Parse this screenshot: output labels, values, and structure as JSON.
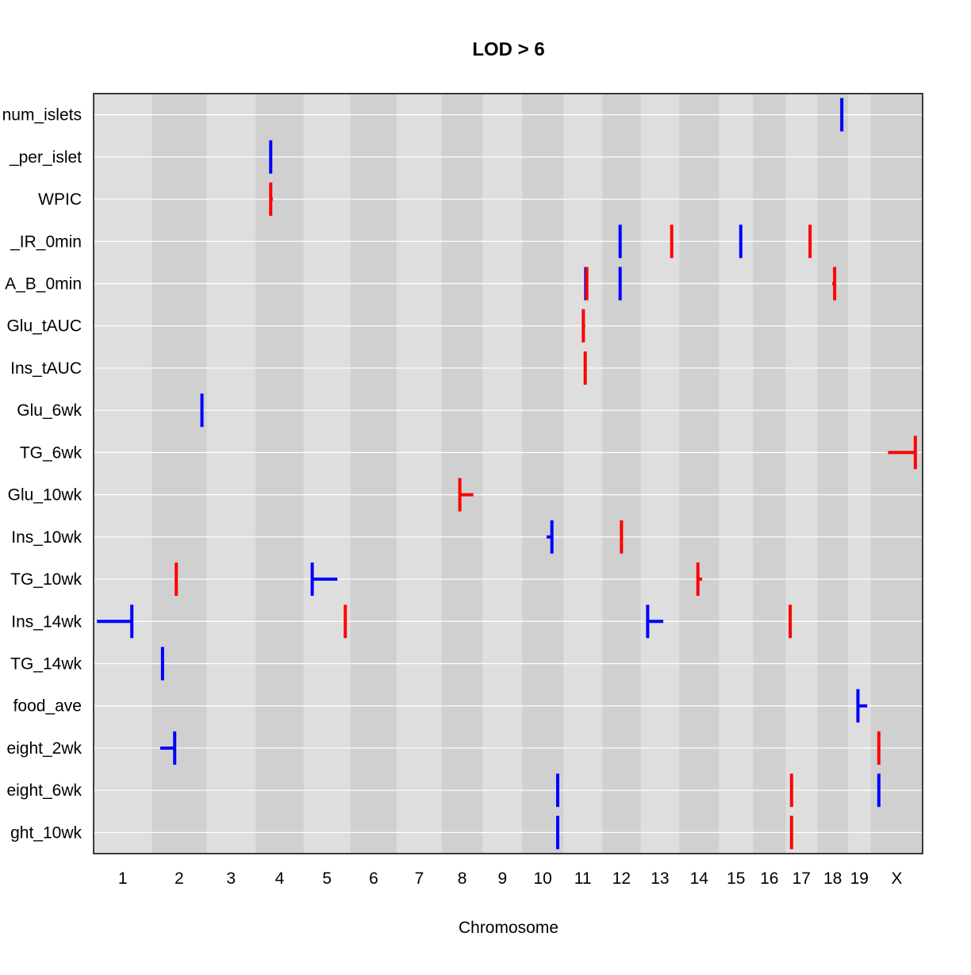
{
  "chart_data": {
    "type": "scatter",
    "title": "LOD > 6",
    "xlabel": "Chromosome",
    "ylabel": "",
    "chromosomes": [
      "1",
      "2",
      "3",
      "4",
      "5",
      "6",
      "7",
      "8",
      "9",
      "10",
      "11",
      "12",
      "13",
      "14",
      "15",
      "16",
      "17",
      "18",
      "19",
      "X"
    ],
    "chromosome_lengths_mb": [
      195,
      182,
      160,
      157,
      152,
      150,
      145,
      130,
      124,
      131,
      122,
      120,
      121,
      125,
      104,
      98,
      95,
      91,
      61,
      171
    ],
    "phenotypes": [
      "num_islets",
      "_per_islet",
      "WPIC",
      "_IR_0min",
      "A_B_0min",
      "Glu_tAUC",
      "Ins_tAUC",
      "Glu_6wk",
      "TG_6wk",
      "Glu_10wk",
      "Ins_10wk",
      "TG_10wk",
      "Ins_14wk",
      "TG_14wk",
      "food_ave",
      "eight_2wk",
      "eight_6wk",
      "ght_10wk"
    ],
    "colors": {
      "negative": "#0000ff",
      "positive": "#ff0000"
    },
    "background": {
      "panel_light": "#dedede",
      "panel_dark": "#d0d0d0",
      "grid": "#ffffff"
    },
    "qtl": [
      {
        "pheno": "num_islets",
        "chr": "18",
        "pos": 80,
        "lo": 80,
        "hi": 80,
        "color": "#0000ff"
      },
      {
        "pheno": "_per_islet",
        "chr": "4",
        "pos": 45,
        "lo": 45,
        "hi": 45,
        "color": "#0000ff"
      },
      {
        "pheno": "WPIC",
        "chr": "4",
        "pos": 45,
        "lo": 45,
        "hi": 53,
        "color": "#ff0000"
      },
      {
        "pheno": "_IR_0min",
        "chr": "12",
        "pos": 55,
        "lo": 55,
        "hi": 55,
        "color": "#0000ff"
      },
      {
        "pheno": "_IR_0min",
        "chr": "13",
        "pos": 105,
        "lo": 105,
        "hi": 105,
        "color": "#ff0000"
      },
      {
        "pheno": "_IR_0min",
        "chr": "15",
        "pos": 70,
        "lo": 70,
        "hi": 70,
        "color": "#0000ff"
      },
      {
        "pheno": "_IR_0min",
        "chr": "17",
        "pos": 80,
        "lo": 80,
        "hi": 86,
        "color": "#ff0000"
      },
      {
        "pheno": "A_B_0min",
        "chr": "11",
        "pos": 72,
        "lo": 72,
        "hi": 72,
        "color": "#0000ff"
      },
      {
        "pheno": "A_B_0min",
        "chr": "11",
        "pos": 76,
        "lo": 76,
        "hi": 76,
        "color": "#ff0000"
      },
      {
        "pheno": "A_B_0min",
        "chr": "12",
        "pos": 55,
        "lo": 55,
        "hi": 55,
        "color": "#0000ff"
      },
      {
        "pheno": "A_B_0min",
        "chr": "18",
        "pos": 53,
        "lo": 44,
        "hi": 53,
        "color": "#ff0000"
      },
      {
        "pheno": "Glu_tAUC",
        "chr": "11",
        "pos": 63,
        "lo": 63,
        "hi": 70,
        "color": "#ff0000"
      },
      {
        "pheno": "Ins_tAUC",
        "chr": "11",
        "pos": 70,
        "lo": 70,
        "hi": 70,
        "color": "#ff0000"
      },
      {
        "pheno": "Glu_6wk",
        "chr": "2",
        "pos": 177,
        "lo": 177,
        "hi": 177,
        "color": "#0000ff"
      },
      {
        "pheno": "TG_6wk",
        "chr": "X",
        "pos": 156,
        "lo": 53,
        "hi": 156,
        "color": "#ff0000"
      },
      {
        "pheno": "Glu_10wk",
        "chr": "8",
        "pos": 56,
        "lo": 56,
        "hi": 107,
        "color": "#ff0000"
      },
      {
        "pheno": "Ins_10wk",
        "chr": "10",
        "pos": 100,
        "lo": 80,
        "hi": 100,
        "color": "#0000ff"
      },
      {
        "pheno": "Ins_10wk",
        "chr": "12",
        "pos": 60,
        "lo": 60,
        "hi": 66,
        "color": "#ff0000"
      },
      {
        "pheno": "TG_10wk",
        "chr": "2",
        "pos": 80,
        "lo": 80,
        "hi": 80,
        "color": "#ff0000"
      },
      {
        "pheno": "TG_10wk",
        "chr": "5",
        "pos": 20,
        "lo": 20,
        "hi": 115,
        "color": "#0000ff"
      },
      {
        "pheno": "TG_10wk",
        "chr": "14",
        "pos": 58,
        "lo": 58,
        "hi": 74,
        "color": "#ff0000"
      },
      {
        "pheno": "Ins_14wk",
        "chr": "1",
        "pos": 132,
        "lo": 0,
        "hi": 132,
        "color": "#0000ff"
      },
      {
        "pheno": "Ins_14wk",
        "chr": "5",
        "pos": 145,
        "lo": 145,
        "hi": 145,
        "color": "#ff0000"
      },
      {
        "pheno": "Ins_14wk",
        "chr": "13",
        "pos": 14,
        "lo": 14,
        "hi": 73,
        "color": "#0000ff"
      },
      {
        "pheno": "Ins_14wk",
        "chr": "17",
        "pos": 5,
        "lo": 5,
        "hi": 5,
        "color": "#ff0000"
      },
      {
        "pheno": "TG_14wk",
        "chr": "2",
        "pos": 28,
        "lo": 28,
        "hi": 28,
        "color": "#0000ff"
      },
      {
        "pheno": "food_ave",
        "chr": "19",
        "pos": 25,
        "lo": 25,
        "hi": 60,
        "color": "#0000ff"
      },
      {
        "pheno": "eight_2wk",
        "chr": "2",
        "pos": 74,
        "lo": 19,
        "hi": 74,
        "color": "#0000ff"
      },
      {
        "pheno": "eight_2wk",
        "chr": "X",
        "pos": 18,
        "lo": 18,
        "hi": 18,
        "color": "#ff0000"
      },
      {
        "pheno": "eight_6wk",
        "chr": "10",
        "pos": 122,
        "lo": 122,
        "hi": 122,
        "color": "#0000ff"
      },
      {
        "pheno": "eight_6wk",
        "chr": "17",
        "pos": 10,
        "lo": 10,
        "hi": 12,
        "color": "#ff0000"
      },
      {
        "pheno": "eight_6wk",
        "chr": "X",
        "pos": 18,
        "lo": 18,
        "hi": 18,
        "color": "#0000ff"
      },
      {
        "pheno": "ght_10wk",
        "chr": "10",
        "pos": 122,
        "lo": 122,
        "hi": 122,
        "color": "#0000ff"
      },
      {
        "pheno": "ght_10wk",
        "chr": "17",
        "pos": 10,
        "lo": 10,
        "hi": 12,
        "color": "#ff0000"
      }
    ]
  }
}
